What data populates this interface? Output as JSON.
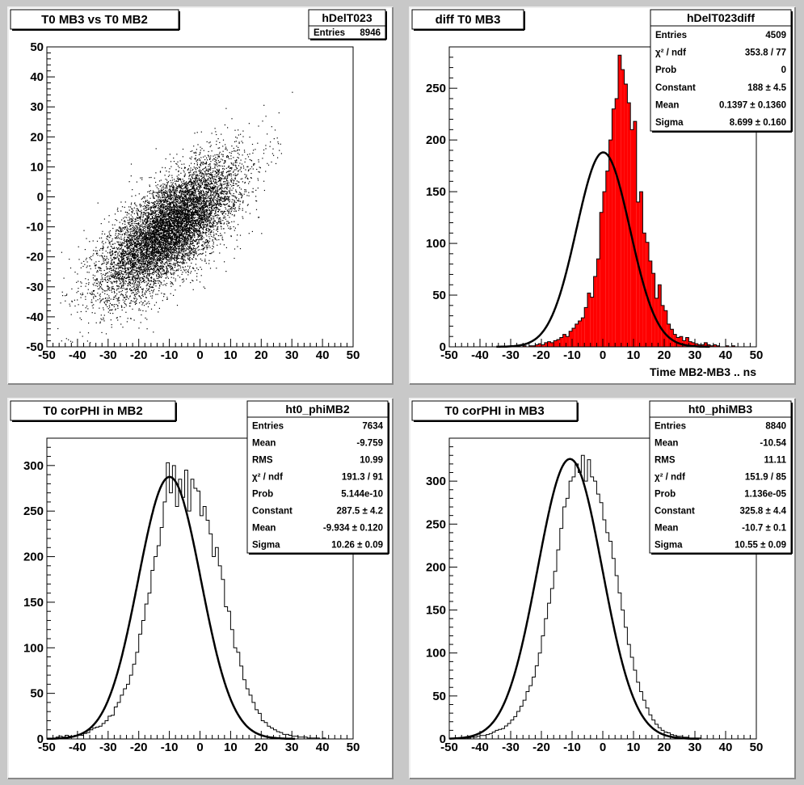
{
  "colors": {
    "canvas": "#c8c8c8",
    "pad": "#ffffff",
    "frame": "#000000",
    "fill": "#ff0000",
    "fit": "#000000"
  },
  "chart_data": [
    {
      "type": "scatter",
      "title": "T0 MB3 vs T0 MB2",
      "xlabel": "",
      "ylabel": "",
      "xlim": [
        -50,
        50
      ],
      "ylim": [
        -50,
        50
      ],
      "x_ticks": [
        -50,
        -40,
        -30,
        -20,
        -10,
        0,
        10,
        20,
        30,
        40,
        50
      ],
      "y_ticks": [
        -50,
        -40,
        -30,
        -20,
        -10,
        0,
        10,
        20,
        30,
        40,
        50
      ],
      "grid": false,
      "stats_box": {
        "name": "hDelT023",
        "rows": [
          {
            "label": "Entries",
            "value": "8946"
          }
        ]
      },
      "distribution": {
        "entries": 8946,
        "mean_x": -9.8,
        "mean_y": -10.4,
        "sigma_x": 11.0,
        "sigma_y": 11.1,
        "correlation": 0.7
      }
    },
    {
      "type": "bar",
      "title": "diff T0 MB3",
      "xlabel": "Time MB2-MB3  ..  ns",
      "ylabel": "",
      "xlim": [
        -50,
        50
      ],
      "ylim": [
        0,
        290
      ],
      "x_ticks": [
        -50,
        -40,
        -30,
        -20,
        -10,
        0,
        10,
        20,
        30,
        40,
        50
      ],
      "y_ticks": [
        0,
        50,
        100,
        150,
        200,
        250
      ],
      "grid": false,
      "filled": true,
      "stats_box": {
        "name": "hDelT023diff",
        "rows": [
          {
            "label": "Entries",
            "value": "4509"
          },
          {
            "label": "χ² / ndf",
            "value": "353.8 / 77"
          },
          {
            "label": "Prob",
            "value": "0"
          },
          {
            "label": "Constant",
            "value": "188 ± 4.5"
          },
          {
            "label": "Mean",
            "value": "0.1397 ± 0.1360"
          },
          {
            "label": "Sigma",
            "value": "8.699 ± 0.160"
          }
        ]
      },
      "bins": {
        "x_start": -50,
        "width": 1,
        "values": [
          0,
          0,
          0,
          0,
          0,
          0,
          0,
          0,
          0,
          0,
          0,
          0,
          0,
          0,
          0,
          0,
          0,
          0,
          0,
          0,
          0,
          0,
          0,
          0,
          1,
          0,
          1,
          1,
          2,
          3,
          2,
          4,
          5,
          4,
          6,
          7,
          9,
          12,
          10,
          15,
          18,
          22,
          25,
          28,
          38,
          52,
          48,
          68,
          85,
          130,
          150,
          170,
          200,
          230,
          240,
          282,
          268,
          254,
          236,
          210,
          218,
          140,
          150,
          110,
          101,
          83,
          71,
          47,
          60,
          40,
          35,
          22,
          17,
          12,
          9,
          10,
          6,
          9,
          5,
          4,
          3,
          2,
          2,
          4,
          2,
          1,
          2,
          1,
          0,
          0,
          1,
          0,
          1,
          0,
          0,
          0,
          0,
          0,
          0,
          0
        ]
      },
      "fit": {
        "type": "gaus",
        "constant": 188,
        "mean": 0.1397,
        "sigma": 8.699
      }
    },
    {
      "type": "bar",
      "title": "T0 corPHI in MB2",
      "xlabel": "",
      "ylabel": "",
      "xlim": [
        -50,
        50
      ],
      "ylim": [
        0,
        330
      ],
      "x_ticks": [
        -50,
        -40,
        -30,
        -20,
        -10,
        0,
        10,
        20,
        30,
        40,
        50
      ],
      "y_ticks": [
        0,
        50,
        100,
        150,
        200,
        250,
        300
      ],
      "grid": false,
      "filled": false,
      "stats_box": {
        "name": "ht0_phiMB2",
        "rows": [
          {
            "label": "Entries",
            "value": "7634"
          },
          {
            "label": "Mean",
            "value": "-9.759"
          },
          {
            "label": "RMS",
            "value": "10.99"
          },
          {
            "label": "χ² / ndf",
            "value": "191.3 / 91"
          },
          {
            "label": "Prob",
            "value": "5.144e-10"
          },
          {
            "label": "Constant",
            "value": "287.5 ± 4.2"
          },
          {
            "label": "Mean",
            "value": "-9.934 ± 0.120"
          },
          {
            "label": "Sigma",
            "value": "10.26 ± 0.09"
          }
        ]
      },
      "bins": {
        "x_start": -50,
        "width": 1,
        "values": [
          0,
          0,
          0,
          2,
          3,
          2,
          4,
          3,
          3,
          4,
          5,
          4,
          6,
          7,
          10,
          12,
          13,
          14,
          17,
          20,
          25,
          26,
          35,
          40,
          48,
          55,
          60,
          70,
          82,
          95,
          115,
          130,
          148,
          160,
          185,
          200,
          212,
          232,
          260,
          303,
          270,
          300,
          255,
          285,
          265,
          295,
          250,
          285,
          275,
          272,
          245,
          255,
          240,
          225,
          200,
          210,
          190,
          175,
          145,
          140,
          120,
          100,
          95,
          80,
          65,
          55,
          48,
          40,
          32,
          28,
          20,
          18,
          14,
          12,
          10,
          8,
          7,
          5,
          5,
          4,
          3,
          3,
          2,
          2,
          2,
          1,
          1,
          1,
          1,
          0,
          1,
          0,
          0,
          0,
          0,
          0,
          0,
          0,
          0,
          0
        ]
      },
      "fit": {
        "type": "gaus",
        "constant": 287.5,
        "mean": -9.934,
        "sigma": 10.26
      }
    },
    {
      "type": "bar",
      "title": "T0 corPHI in MB3",
      "xlabel": "",
      "ylabel": "",
      "xlim": [
        -50,
        50
      ],
      "ylim": [
        0,
        350
      ],
      "x_ticks": [
        -50,
        -40,
        -30,
        -20,
        -10,
        0,
        10,
        20,
        30,
        40,
        50
      ],
      "y_ticks": [
        0,
        50,
        100,
        150,
        200,
        250,
        300
      ],
      "grid": false,
      "filled": false,
      "stats_box": {
        "name": "ht0_phiMB3",
        "rows": [
          {
            "label": "Entries",
            "value": "8840"
          },
          {
            "label": "Mean",
            "value": "-10.54"
          },
          {
            "label": "RMS",
            "value": "11.11"
          },
          {
            "label": "χ² / ndf",
            "value": "151.9 / 85"
          },
          {
            "label": "Prob",
            "value": "1.136e-05"
          },
          {
            "label": "Constant",
            "value": "325.8 ± 4.4"
          },
          {
            "label": "Mean",
            "value": "-10.7 ± 0.1"
          },
          {
            "label": "Sigma",
            "value": "10.55 ± 0.09"
          }
        ]
      },
      "bins": {
        "x_start": -50,
        "width": 1,
        "values": [
          0,
          0,
          0,
          0,
          0,
          1,
          1,
          2,
          2,
          3,
          4,
          4,
          5,
          6,
          8,
          10,
          11,
          12,
          15,
          18,
          22,
          26,
          32,
          38,
          45,
          55,
          62,
          72,
          85,
          100,
          120,
          140,
          158,
          175,
          195,
          220,
          245,
          270,
          280,
          300,
          305,
          320,
          310,
          330,
          300,
          325,
          305,
          300,
          285,
          275,
          255,
          240,
          230,
          210,
          190,
          170,
          150,
          130,
          110,
          95,
          80,
          66,
          55,
          45,
          36,
          28,
          22,
          17,
          13,
          10,
          8,
          7,
          5,
          4,
          3,
          3,
          2,
          2,
          1,
          1,
          1,
          1,
          0,
          0,
          0,
          0,
          0,
          0,
          0,
          0,
          0,
          0,
          0,
          0,
          0,
          0,
          0,
          0,
          0,
          0
        ]
      },
      "fit": {
        "type": "gaus",
        "constant": 325.8,
        "mean": -10.7,
        "sigma": 10.55
      }
    }
  ]
}
